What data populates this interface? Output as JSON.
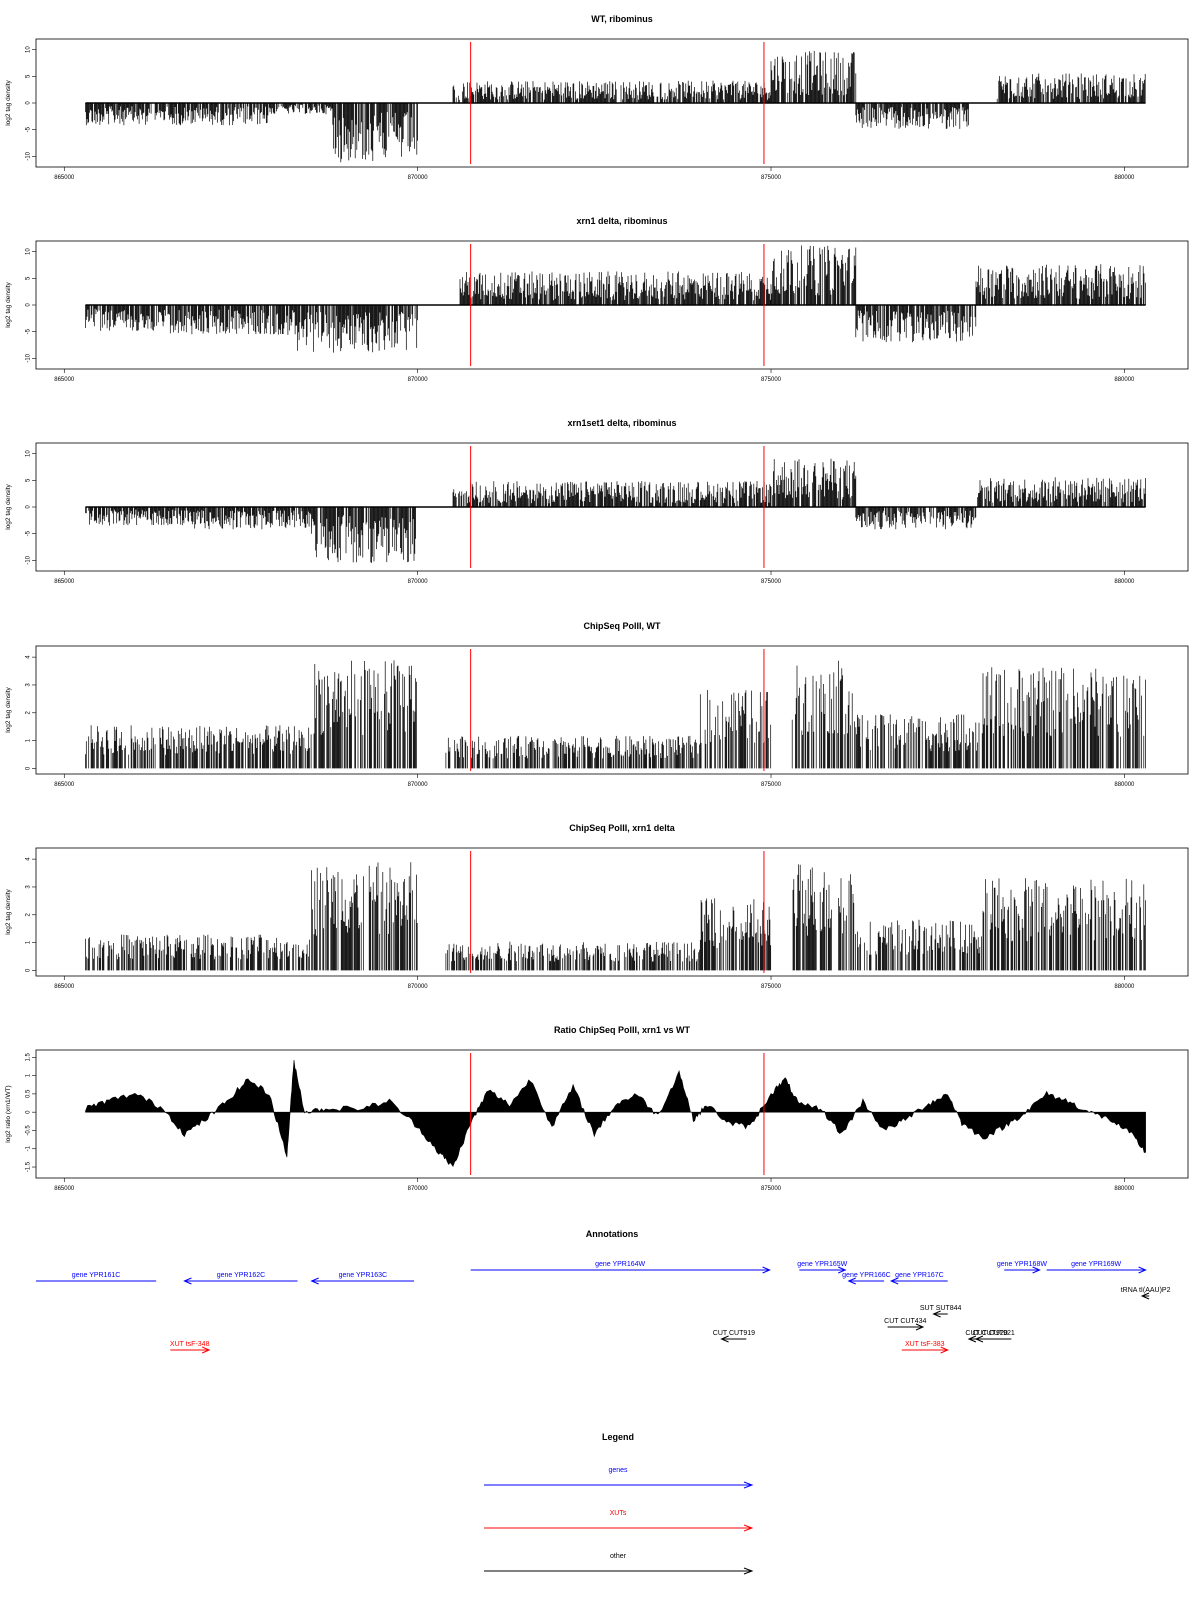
{
  "colors": {
    "track": "#000000",
    "marker": "#ff0000",
    "gene": "#0000ff",
    "xut": "#ff0000",
    "other": "#000000"
  },
  "xaxis": {
    "range": [
      864600,
      880900
    ],
    "ticks": [
      865000,
      870000,
      875000,
      880000
    ],
    "tick_labels": [
      "865000",
      "870000",
      "875000",
      "880000"
    ]
  },
  "markers": [
    870750,
    874900
  ],
  "panels": [
    {
      "title": "WT, ribominus",
      "ylabel": "log2 tag density",
      "type": "area",
      "ylim": [
        -12,
        12
      ],
      "yticks": [
        -10,
        -5,
        0,
        5,
        10
      ],
      "ytick_labels": [
        "-10",
        "-5",
        "0",
        "5",
        "10"
      ],
      "chart_data": {
        "type": "area",
        "x_start": 865300,
        "x_end": 880300,
        "segments": [
          {
            "from": 865300,
            "to": 867900,
            "level": -3.0
          },
          {
            "from": 867900,
            "to": 868800,
            "level": -1.5
          },
          {
            "from": 868800,
            "to": 870000,
            "level": -8.0
          },
          {
            "from": 870500,
            "to": 875000,
            "level": 3.0
          },
          {
            "from": 875000,
            "to": 876200,
            "level": 7.0
          },
          {
            "from": 876200,
            "to": 877800,
            "level": -3.5
          },
          {
            "from": 878200,
            "to": 880300,
            "level": 4.0
          }
        ]
      }
    },
    {
      "title": "xrn1 delta, ribominus",
      "ylabel": "log2 tag density",
      "type": "area",
      "ylim": [
        -12,
        12
      ],
      "yticks": [
        -10,
        -5,
        0,
        5,
        10
      ],
      "ytick_labels": [
        "-10",
        "-5",
        "0",
        "5",
        "10"
      ],
      "chart_data": {
        "type": "area",
        "x_start": 865300,
        "x_end": 880300,
        "segments": [
          {
            "from": 865300,
            "to": 866500,
            "level": -3.5
          },
          {
            "from": 866500,
            "to": 868300,
            "level": -4.0
          },
          {
            "from": 868300,
            "to": 870000,
            "level": -6.5
          },
          {
            "from": 870600,
            "to": 875000,
            "level": 4.5
          },
          {
            "from": 875000,
            "to": 876200,
            "level": 8.0
          },
          {
            "from": 876200,
            "to": 877900,
            "level": -5.0
          },
          {
            "from": 877900,
            "to": 880300,
            "level": 5.5
          }
        ]
      }
    },
    {
      "title": "xrn1set1 delta, ribominus",
      "ylabel": "log2 tag density",
      "type": "area",
      "ylim": [
        -12,
        12
      ],
      "yticks": [
        -10,
        -5,
        0,
        5,
        10
      ],
      "ytick_labels": [
        "-10",
        "-5",
        "0",
        "5",
        "10"
      ],
      "chart_data": {
        "type": "area",
        "x_start": 865300,
        "x_end": 880300,
        "segments": [
          {
            "from": 865300,
            "to": 866800,
            "level": -2.5
          },
          {
            "from": 866800,
            "to": 868500,
            "level": -3.0
          },
          {
            "from": 868500,
            "to": 870000,
            "level": -7.5
          },
          {
            "from": 870500,
            "to": 875000,
            "level": 3.5
          },
          {
            "from": 875000,
            "to": 876200,
            "level": 6.5
          },
          {
            "from": 876200,
            "to": 877900,
            "level": -3.0
          },
          {
            "from": 877900,
            "to": 880300,
            "level": 4.0
          }
        ]
      }
    },
    {
      "title": "ChipSeq PolII, WT",
      "ylabel": "log2 tag density",
      "type": "bars",
      "ylim": [
        -0.2,
        4.4
      ],
      "yticks": [
        0,
        1,
        2,
        3,
        4
      ],
      "ytick_labels": [
        "0",
        "1",
        "2",
        "3",
        "4"
      ],
      "chart_data": {
        "type": "bar",
        "x_start": 865300,
        "x_end": 880300,
        "segments": [
          {
            "from": 865300,
            "to": 868500,
            "level": 1.2
          },
          {
            "from": 868500,
            "to": 870000,
            "level": 3.0
          },
          {
            "from": 870400,
            "to": 874000,
            "level": 0.9
          },
          {
            "from": 874000,
            "to": 875000,
            "level": 2.2
          },
          {
            "from": 875300,
            "to": 876200,
            "level": 3.0
          },
          {
            "from": 876200,
            "to": 878000,
            "level": 1.5
          },
          {
            "from": 878000,
            "to": 880300,
            "level": 2.8
          }
        ]
      }
    },
    {
      "title": "ChipSeq PolII, xrn1 delta",
      "ylabel": "log2 tag density",
      "type": "bars",
      "ylim": [
        -0.2,
        4.4
      ],
      "yticks": [
        0,
        1,
        2,
        3,
        4
      ],
      "ytick_labels": [
        "0",
        "1",
        "2",
        "3",
        "4"
      ],
      "chart_data": {
        "type": "bar",
        "x_start": 865300,
        "x_end": 880300,
        "segments": [
          {
            "from": 865300,
            "to": 868500,
            "level": 1.0
          },
          {
            "from": 868500,
            "to": 870000,
            "level": 3.0
          },
          {
            "from": 870400,
            "to": 874000,
            "level": 0.8
          },
          {
            "from": 874000,
            "to": 875000,
            "level": 2.0
          },
          {
            "from": 875300,
            "to": 876200,
            "level": 3.0
          },
          {
            "from": 876200,
            "to": 878000,
            "level": 1.4
          },
          {
            "from": 878000,
            "to": 880300,
            "level": 2.6
          }
        ]
      }
    },
    {
      "title": "Ratio ChipSeq PolII, xrn1 vs WT",
      "ylabel": "log2 ratio (xrn1/WT)",
      "type": "ratio",
      "ylim": [
        -1.8,
        1.7
      ],
      "yticks": [
        -1.5,
        -1,
        -0.5,
        0,
        0.5,
        1,
        1.5
      ],
      "ytick_labels": [
        "-1.5",
        "-1",
        "-0.5",
        "0",
        "0.5",
        "1",
        "1.5"
      ],
      "chart_data": {
        "type": "area",
        "x": [
          865300,
          865600,
          866000,
          866400,
          866700,
          867000,
          867300,
          867600,
          867900,
          868150,
          868250,
          868400,
          868700,
          869200,
          869600,
          870000,
          870300,
          870500,
          870750,
          871000,
          871300,
          871600,
          871900,
          872200,
          872500,
          872800,
          873100,
          873400,
          873700,
          873900,
          874100,
          874400,
          874700,
          875000,
          875200,
          875400,
          875700,
          876000,
          876300,
          876600,
          876900,
          877200,
          877500,
          877700,
          878000,
          878300,
          878600,
          878900,
          879200,
          879500,
          879800,
          880100,
          880300
        ],
        "y": [
          0.1,
          0.3,
          0.5,
          0.1,
          -0.6,
          -0.2,
          0.3,
          0.9,
          0.5,
          -1.2,
          1.4,
          0.0,
          0.1,
          0.1,
          0.3,
          -0.4,
          -1.1,
          -1.5,
          -0.3,
          0.6,
          0.2,
          0.9,
          -0.4,
          0.7,
          -0.6,
          0.2,
          0.5,
          -0.1,
          1.1,
          -0.2,
          0.2,
          -0.3,
          -0.4,
          0.5,
          0.9,
          0.2,
          0.1,
          -0.6,
          0.3,
          -0.5,
          -0.2,
          0.2,
          0.5,
          -0.3,
          -0.7,
          -0.4,
          0.0,
          0.5,
          0.3,
          0.0,
          -0.2,
          -0.6,
          -1.1
        ]
      }
    }
  ],
  "annotations": {
    "title": "Annotations",
    "items": [
      {
        "label": "gene YPR161C",
        "start": 864600,
        "end": 866300,
        "dir": "none",
        "color": "gene",
        "row": 1
      },
      {
        "label": "gene YPR162C",
        "start": 866700,
        "end": 868300,
        "dir": "left",
        "color": "gene",
        "row": 1
      },
      {
        "label": "gene YPR163C",
        "start": 868500,
        "end": 869950,
        "dir": "left",
        "color": "gene",
        "row": 1
      },
      {
        "label": "gene YPR164W",
        "start": 870750,
        "end": 874980,
        "dir": "right",
        "color": "gene",
        "row": 0
      },
      {
        "label": "gene YPR165W",
        "start": 875400,
        "end": 876050,
        "dir": "right",
        "color": "gene",
        "row": 0
      },
      {
        "label": "gene YPR166C",
        "start": 876100,
        "end": 876600,
        "dir": "left",
        "color": "gene",
        "row": 1
      },
      {
        "label": "gene YPR167C",
        "start": 876700,
        "end": 877500,
        "dir": "left",
        "color": "gene",
        "row": 1
      },
      {
        "label": "gene YPR168W",
        "start": 878300,
        "end": 878800,
        "dir": "right",
        "color": "gene",
        "row": 0
      },
      {
        "label": "gene YPR169W",
        "start": 878900,
        "end": 880300,
        "dir": "right",
        "color": "gene",
        "row": 0
      },
      {
        "label": "tRNA tI(AAU)P2",
        "start": 880250,
        "end": 880350,
        "dir": "left",
        "color": "other",
        "row": 2
      },
      {
        "label": "SUT SUT844",
        "start": 877300,
        "end": 877500,
        "dir": "left",
        "color": "other",
        "row": 3
      },
      {
        "label": "CUT CUT434",
        "start": 876650,
        "end": 877150,
        "dir": "right",
        "color": "other",
        "row": 4
      },
      {
        "label": "CUT CUT919",
        "start": 874300,
        "end": 874650,
        "dir": "left",
        "color": "other",
        "row": 5
      },
      {
        "label": "CUT CUT920",
        "start": 877800,
        "end": 878300,
        "dir": "left",
        "color": "other",
        "row": 5
      },
      {
        "label": "CUT CUT921",
        "start": 877900,
        "end": 878400,
        "dir": "left",
        "color": "other",
        "row": 5
      },
      {
        "label": "XUT tsF-348",
        "start": 866500,
        "end": 867050,
        "dir": "right",
        "color": "xut",
        "row": 6
      },
      {
        "label": "XUT tsF-383",
        "start": 876850,
        "end": 877500,
        "dir": "right",
        "color": "xut",
        "row": 6
      }
    ]
  },
  "legend": {
    "title": "Legend",
    "items": [
      {
        "label": "genes",
        "color": "gene"
      },
      {
        "label": "XUTs",
        "color": "xut"
      },
      {
        "label": "other",
        "color": "other"
      }
    ]
  }
}
